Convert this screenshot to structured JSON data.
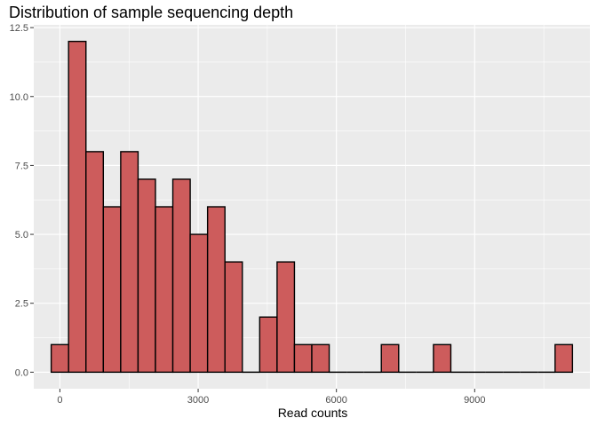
{
  "chart_data": {
    "type": "bar",
    "title": "Distribution of sample sequencing depth",
    "xlabel": "Read counts",
    "ylabel": "",
    "bin_width": 377,
    "bin_centers": [
      0,
      377,
      754,
      1131,
      1508,
      1885,
      2262,
      2639,
      3016,
      3393,
      3770,
      4147,
      4524,
      4901,
      5278,
      5655,
      6032,
      6409,
      6786,
      7163,
      7540,
      7917,
      8294,
      8671,
      9048,
      9425,
      9802,
      10179,
      10556,
      10933
    ],
    "values": [
      1,
      12,
      8,
      6,
      8,
      7,
      6,
      7,
      5,
      6,
      4,
      0,
      2,
      4,
      1,
      1,
      0,
      0,
      0,
      1,
      0,
      0,
      1,
      0,
      0,
      0,
      0,
      0,
      0,
      1
    ],
    "xlim": [
      -567,
      11500
    ],
    "ylim": [
      -0.6,
      12.6
    ],
    "x_ticks": [
      0,
      3000,
      6000,
      9000
    ],
    "x_tick_labels": [
      "0",
      "3000",
      "6000",
      "9000"
    ],
    "y_ticks": [
      0,
      2.5,
      5,
      7.5,
      10,
      12.5
    ],
    "y_tick_labels": [
      "0.0",
      "2.5",
      "5.0",
      "7.5",
      "10.0",
      "12.5"
    ],
    "grid": true,
    "colors": {
      "fill": "#cd5c5c",
      "outline": "#000000",
      "panel": "#ebebeb",
      "grid": "#ffffff"
    }
  }
}
